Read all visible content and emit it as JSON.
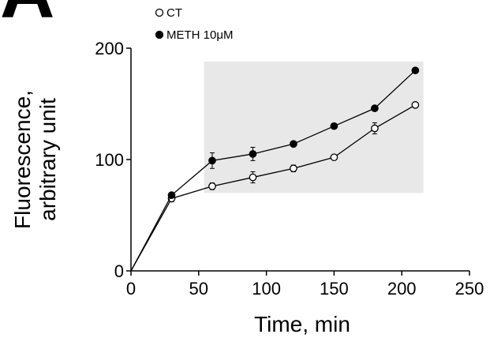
{
  "panel_label": "A",
  "chart_data": {
    "type": "line",
    "xlabel": "Time, min",
    "ylabel_line1": "Fluorescence,",
    "ylabel_line2": "arbitrary unit",
    "xlim": [
      0,
      250
    ],
    "ylim": [
      0,
      200
    ],
    "x_ticks": [
      0,
      50,
      100,
      150,
      200,
      250
    ],
    "y_ticks": [
      0,
      100,
      200
    ],
    "grid": false,
    "legend_position": "top-left",
    "highlight_region": {
      "x": [
        54,
        216
      ],
      "y": [
        70,
        188
      ],
      "color": "#e8e8e8"
    },
    "series": [
      {
        "name": "CT",
        "marker": "open-circle",
        "points": [
          {
            "x": 0,
            "y": 0,
            "err": 0
          },
          {
            "x": 30,
            "y": 65,
            "err": 3
          },
          {
            "x": 60,
            "y": 76,
            "err": 3
          },
          {
            "x": 90,
            "y": 84,
            "err": 5
          },
          {
            "x": 120,
            "y": 92,
            "err": 3
          },
          {
            "x": 150,
            "y": 102,
            "err": 2
          },
          {
            "x": 180,
            "y": 128,
            "err": 5
          },
          {
            "x": 210,
            "y": 149,
            "err": 2
          }
        ]
      },
      {
        "name": "METH 10μM",
        "marker": "filled-circle",
        "points": [
          {
            "x": 0,
            "y": 0,
            "err": 0
          },
          {
            "x": 30,
            "y": 68,
            "err": 2
          },
          {
            "x": 60,
            "y": 99,
            "err": 7
          },
          {
            "x": 90,
            "y": 105,
            "err": 6
          },
          {
            "x": 120,
            "y": 114,
            "err": 2
          },
          {
            "x": 150,
            "y": 130,
            "err": 2
          },
          {
            "x": 180,
            "y": 146,
            "err": 2
          },
          {
            "x": 210,
            "y": 180,
            "err": 2
          }
        ]
      }
    ]
  }
}
